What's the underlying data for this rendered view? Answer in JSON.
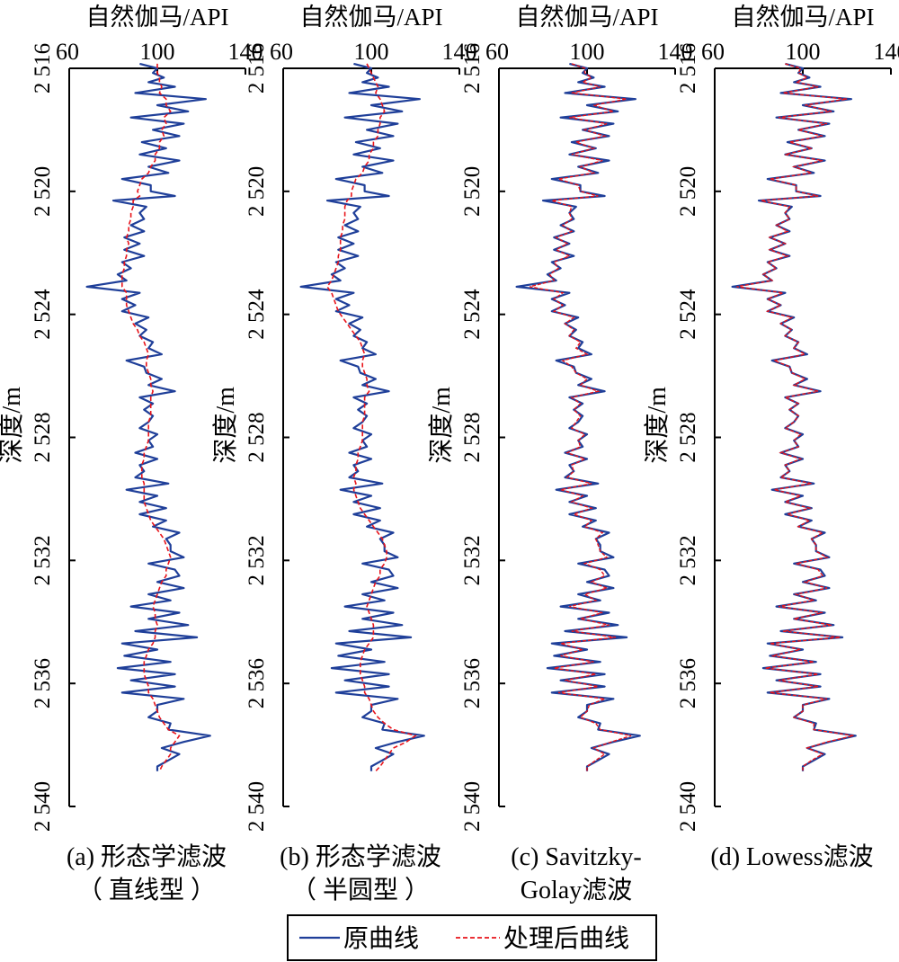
{
  "chart_data": [
    {
      "type": "line",
      "x_title": "自然伽马/API",
      "y_title": "深度/m",
      "xlim": [
        60,
        140
      ],
      "ylim": [
        2516,
        2540
      ],
      "x_ticks": [
        "60",
        "100",
        "140"
      ],
      "y_ticks": [
        "2 516",
        "2 520",
        "2 524",
        "2 528",
        "2 532",
        "2 536",
        "2 540"
      ],
      "caption": [
        "(a) 形态学滤波",
        "（ 直线型 ）"
      ],
      "series": [
        {
          "name": "原曲线"
        },
        {
          "name": "处理后曲线"
        }
      ]
    },
    {
      "type": "line",
      "x_title": "自然伽马/API",
      "y_title": "深度/m",
      "xlim": [
        60,
        140
      ],
      "ylim": [
        2516,
        2540
      ],
      "x_ticks": [
        "60",
        "100",
        "140"
      ],
      "y_ticks": [
        "2 516",
        "2 520",
        "2 524",
        "2 528",
        "2 532",
        "2 536",
        "2 540"
      ],
      "caption": [
        "(b) 形态学滤波",
        "（ 半圆型 ）"
      ],
      "series": [
        {
          "name": "原曲线"
        },
        {
          "name": "处理后曲线"
        }
      ]
    },
    {
      "type": "line",
      "x_title": "自然伽马/API",
      "y_title": "深度/m",
      "xlim": [
        60,
        140
      ],
      "ylim": [
        2516,
        2540
      ],
      "x_ticks": [
        "60",
        "100",
        "140"
      ],
      "y_ticks": [
        "2 516",
        "2 520",
        "2 524",
        "2 528",
        "2 532",
        "2 536",
        "2 540"
      ],
      "caption": [
        "(c) Savitzky-",
        "Golay滤波"
      ],
      "series": [
        {
          "name": "原曲线"
        },
        {
          "name": "处理后曲线"
        }
      ]
    },
    {
      "type": "line",
      "x_title": "自然伽马/API",
      "y_title": "深度/m",
      "xlim": [
        60,
        140
      ],
      "ylim": [
        2516,
        2540
      ],
      "x_ticks": [
        "60",
        "100",
        "140"
      ],
      "y_ticks": [
        "2 516",
        "2 520",
        "2 524",
        "2 528",
        "2 532",
        "2 536",
        "2 540"
      ],
      "caption": [
        "(d) Lowess滤波",
        ""
      ],
      "series": [
        {
          "name": "原曲线"
        },
        {
          "name": "处理后曲线"
        }
      ]
    }
  ],
  "gr_log": {
    "depth": [
      2515.85,
      2516.0,
      2516.15,
      2516.3,
      2516.45,
      2516.6,
      2516.8,
      2517.0,
      2517.2,
      2517.4,
      2517.6,
      2517.8,
      2518.0,
      2518.2,
      2518.4,
      2518.6,
      2518.8,
      2519.0,
      2519.2,
      2519.4,
      2519.6,
      2519.8,
      2520.0,
      2520.15,
      2520.3,
      2520.5,
      2520.7,
      2520.9,
      2521.1,
      2521.3,
      2521.5,
      2521.7,
      2521.9,
      2522.1,
      2522.3,
      2522.5,
      2522.7,
      2522.9,
      2523.1,
      2523.3,
      2523.5,
      2523.7,
      2523.9,
      2524.1,
      2524.3,
      2524.5,
      2524.7,
      2524.9,
      2525.1,
      2525.3,
      2525.5,
      2525.7,
      2525.9,
      2526.1,
      2526.3,
      2526.5,
      2526.7,
      2526.9,
      2527.1,
      2527.3,
      2527.5,
      2527.7,
      2527.9,
      2528.1,
      2528.3,
      2528.5,
      2528.7,
      2528.9,
      2529.1,
      2529.3,
      2529.5,
      2529.7,
      2529.9,
      2530.1,
      2530.3,
      2530.5,
      2530.7,
      2530.9,
      2531.1,
      2531.3,
      2531.5,
      2531.7,
      2531.9,
      2532.1,
      2532.3,
      2532.5,
      2532.7,
      2532.9,
      2533.1,
      2533.3,
      2533.5,
      2533.7,
      2533.9,
      2534.1,
      2534.3,
      2534.5,
      2534.7,
      2534.9,
      2535.1,
      2535.3,
      2535.5,
      2535.7,
      2535.9,
      2536.1,
      2536.3,
      2536.5,
      2536.7,
      2536.9,
      2537.1,
      2537.3,
      2537.5,
      2537.7,
      2537.9,
      2538.1,
      2538.3,
      2538.5,
      2538.7,
      2538.85
    ],
    "raw": [
      92,
      100,
      98,
      103,
      96,
      108,
      90,
      122,
      100,
      114,
      88,
      112,
      98,
      110,
      93,
      104,
      92,
      110,
      96,
      105,
      84,
      97,
      97,
      108,
      80,
      95,
      92,
      94,
      88,
      94,
      85,
      92,
      85,
      94,
      84,
      88,
      82,
      86,
      68,
      92,
      84,
      90,
      84,
      96,
      90,
      95,
      92,
      98,
      96,
      102,
      86,
      94,
      95,
      102,
      96,
      108,
      92,
      98,
      94,
      98,
      96,
      92,
      100,
      96,
      98,
      90,
      100,
      92,
      94,
      90,
      105,
      86,
      100,
      92,
      104,
      92,
      104,
      98,
      110,
      104,
      106,
      106,
      112,
      96,
      108,
      110,
      100,
      112,
      96,
      106,
      88,
      110,
      96,
      114,
      90,
      118,
      84,
      100,
      85,
      106,
      82,
      108,
      88,
      108,
      84,
      112,
      100,
      100,
      96,
      106,
      105,
      124,
      112,
      102,
      110,
      105,
      100,
      100
    ],
    "morph_line": [
      100,
      100,
      100,
      101,
      101,
      102,
      101,
      104,
      104,
      106,
      103,
      104,
      102,
      103,
      101,
      101,
      99,
      99,
      97,
      96,
      93,
      92,
      91,
      92,
      89,
      89,
      88,
      88,
      87,
      87,
      86,
      87,
      86,
      86,
      85,
      85,
      84,
      84,
      84,
      86,
      86,
      86,
      87,
      88,
      89,
      91,
      92,
      94,
      95,
      96,
      95,
      95,
      96,
      97,
      97,
      98,
      97,
      97,
      97,
      97,
      96,
      96,
      96,
      96,
      95,
      94,
      94,
      93,
      93,
      93,
      94,
      94,
      94,
      94,
      95,
      96,
      97,
      99,
      101,
      103,
      104,
      105,
      106,
      105,
      104,
      104,
      102,
      101,
      100,
      99,
      98,
      99,
      99,
      100,
      99,
      99,
      98,
      96,
      95,
      94,
      94,
      94,
      95,
      96,
      96,
      98,
      99,
      100,
      101,
      103,
      105,
      110,
      108,
      106,
      106,
      104,
      102,
      101
    ],
    "morph_semi": [
      98,
      99,
      100,
      101,
      102,
      103,
      102,
      104,
      105,
      106,
      104,
      104,
      103,
      103,
      101,
      101,
      99,
      99,
      97,
      96,
      93,
      92,
      91,
      91,
      89,
      88,
      88,
      88,
      87,
      87,
      86,
      86,
      86,
      85,
      85,
      84,
      83,
      82,
      80,
      82,
      83,
      84,
      85,
      87,
      89,
      91,
      93,
      95,
      96,
      97,
      96,
      96,
      97,
      98,
      98,
      99,
      97,
      97,
      97,
      97,
      96,
      96,
      96,
      96,
      95,
      94,
      94,
      93,
      93,
      92,
      93,
      92,
      93,
      94,
      95,
      97,
      99,
      101,
      103,
      105,
      106,
      107,
      107,
      106,
      104,
      104,
      102,
      101,
      100,
      99,
      98,
      99,
      100,
      101,
      101,
      101,
      99,
      97,
      96,
      95,
      95,
      95,
      96,
      97,
      97,
      99,
      100,
      101,
      103,
      106,
      110,
      120,
      116,
      110,
      108,
      106,
      104,
      102
    ],
    "savgol": [
      93,
      99,
      99,
      102,
      98,
      106,
      93,
      118,
      103,
      112,
      92,
      109,
      99,
      108,
      95,
      103,
      93,
      107,
      97,
      103,
      87,
      96,
      97,
      105,
      84,
      93,
      92,
      93,
      89,
      93,
      86,
      91,
      86,
      92,
      85,
      87,
      83,
      85,
      74,
      89,
      85,
      89,
      85,
      94,
      90,
      94,
      92,
      97,
      95,
      100,
      89,
      93,
      95,
      100,
      97,
      105,
      93,
      97,
      94,
      97,
      95,
      93,
      99,
      96,
      97,
      91,
      99,
      93,
      94,
      91,
      102,
      88,
      98,
      93,
      102,
      94,
      102,
      99,
      107,
      104,
      105,
      106,
      109,
      99,
      106,
      108,
      102,
      109,
      99,
      104,
      92,
      107,
      97,
      110,
      93,
      113,
      88,
      98,
      88,
      103,
      85,
      104,
      90,
      105,
      87,
      108,
      101,
      100,
      97,
      104,
      106,
      120,
      111,
      103,
      108,
      104,
      100,
      100
    ],
    "lowess": [
      92,
      99,
      98,
      102,
      97,
      107,
      91,
      120,
      101,
      113,
      89,
      111,
      98,
      109,
      94,
      104,
      92,
      109,
      96,
      104,
      85,
      97,
      97,
      107,
      81,
      94,
      92,
      94,
      88,
      93,
      85,
      92,
      85,
      93,
      84,
      88,
      82,
      86,
      70,
      91,
      84,
      90,
      84,
      95,
      90,
      95,
      92,
      98,
      96,
      101,
      87,
      94,
      95,
      101,
      96,
      107,
      92,
      98,
      94,
      98,
      96,
      92,
      99,
      96,
      98,
      90,
      99,
      92,
      94,
      90,
      104,
      87,
      99,
      92,
      103,
      93,
      103,
      98,
      109,
      104,
      106,
      106,
      111,
      97,
      107,
      109,
      101,
      111,
      97,
      105,
      89,
      109,
      96,
      113,
      91,
      117,
      85,
      99,
      86,
      105,
      83,
      107,
      89,
      107,
      85,
      111,
      100,
      100,
      96,
      105,
      105,
      123,
      111,
      102,
      109,
      104,
      100,
      100
    ]
  },
  "legend": {
    "raw_label": "原曲线",
    "processed_label": "处理后曲线"
  },
  "colors": {
    "raw": "#1f3f99",
    "processed": "#e8141b"
  }
}
